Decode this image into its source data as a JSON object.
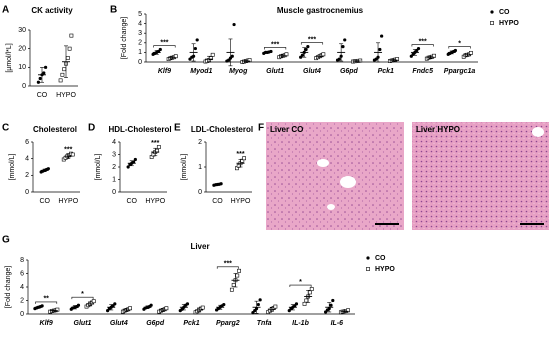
{
  "chart_data": [
    {
      "type": "dot",
      "panel": "A",
      "title": "CK activity",
      "ylabel": "[µmol/l*L]",
      "ylim": [
        0,
        30
      ],
      "yticks": [
        0,
        10,
        20,
        30
      ],
      "categories": [
        "CO",
        "HYPO"
      ],
      "markers": [
        "circle",
        "square"
      ],
      "values": [
        6,
        13
      ],
      "errors": [
        4,
        8.5
      ],
      "points": [
        [
          2,
          4,
          6,
          7,
          10
        ],
        [
          3,
          6,
          9,
          12,
          15,
          20,
          27
        ]
      ]
    },
    {
      "type": "dot",
      "panel": "B",
      "title": "Muscle gastrocnemius",
      "ylabel": "[Fold change]",
      "ylim": [
        0,
        5
      ],
      "yticks": [
        0,
        1,
        2,
        3,
        4,
        5
      ],
      "italic_categories": true,
      "categories": [
        "Klf9",
        "Myod1",
        "Myog",
        "Glut1",
        "Glut4",
        "G6pd",
        "Pck1",
        "Fndc5",
        "Ppargc1a"
      ],
      "significance": [
        "***",
        null,
        null,
        "***",
        "***",
        null,
        null,
        "***",
        "*"
      ],
      "series": [
        {
          "name": "CO",
          "marker": "circle",
          "values": [
            1,
            1,
            1,
            1,
            1,
            1,
            1,
            1,
            1
          ],
          "errors": [
            0.2,
            0.9,
            1.4,
            0.1,
            0.5,
            0.9,
            1.0,
            0.3,
            0.15
          ],
          "points": [
            [
              0.8,
              0.9,
              1.0,
              1.1,
              1.3
            ],
            [
              0.3,
              0.5,
              0.6,
              1.4,
              2.3
            ],
            [
              0.1,
              0.2,
              0.4,
              0.6,
              3.9
            ],
            [
              0.9,
              1.0,
              1.0,
              1.05,
              1.1
            ],
            [
              0.5,
              0.7,
              1.0,
              1.3,
              1.6
            ],
            [
              0.2,
              0.3,
              0.6,
              1.6,
              2.3
            ],
            [
              0.2,
              0.3,
              0.5,
              1.3,
              2.7
            ],
            [
              0.6,
              0.8,
              1.0,
              1.2,
              1.4
            ],
            [
              0.8,
              0.9,
              1.0,
              1.1,
              1.2
            ]
          ]
        },
        {
          "name": "HYPO",
          "marker": "square",
          "values": [
            0.45,
            0.3,
            0.1,
            0.65,
            0.6,
            0.1,
            0.2,
            0.5,
            0.75
          ],
          "errors": [
            0.1,
            0.3,
            0.1,
            0.1,
            0.15,
            0.05,
            0.1,
            0.1,
            0.15
          ],
          "points": [
            [
              0.3,
              0.4,
              0.45,
              0.5,
              0.6
            ],
            [
              0.05,
              0.1,
              0.2,
              0.4,
              0.75
            ],
            [
              0.0,
              0.05,
              0.1,
              0.15,
              0.2
            ],
            [
              0.5,
              0.6,
              0.65,
              0.7,
              0.8
            ],
            [
              0.4,
              0.5,
              0.6,
              0.7,
              0.8
            ],
            [
              0.05,
              0.08,
              0.1,
              0.12,
              0.15
            ],
            [
              0.1,
              0.15,
              0.2,
              0.25,
              0.3
            ],
            [
              0.35,
              0.45,
              0.5,
              0.55,
              0.65
            ],
            [
              0.55,
              0.7,
              0.75,
              0.8,
              0.95
            ]
          ]
        }
      ]
    },
    {
      "type": "dot",
      "panel": "C",
      "title": "Cholesterol",
      "ylabel": "[mmol/L]",
      "ylim": [
        0,
        6
      ],
      "yticks": [
        0,
        2,
        4,
        6
      ],
      "categories": [
        "CO",
        "HYPO"
      ],
      "markers": [
        "circle",
        "square"
      ],
      "values": [
        2.6,
        4.3
      ],
      "errors": [
        0.15,
        0.3
      ],
      "significance": "***",
      "points": [
        [
          2.4,
          2.5,
          2.6,
          2.7,
          2.8
        ],
        [
          3.9,
          4.1,
          4.3,
          4.4,
          4.6,
          4.5
        ]
      ]
    },
    {
      "type": "dot",
      "panel": "D",
      "title": "HDL-Cholesterol",
      "ylabel": "[mmol/L]",
      "ylim": [
        0,
        4
      ],
      "yticks": [
        0,
        1,
        2,
        3,
        4
      ],
      "categories": [
        "CO",
        "HYPO"
      ],
      "markers": [
        "circle",
        "square"
      ],
      "values": [
        2.3,
        3.2
      ],
      "errors": [
        0.2,
        0.3
      ],
      "significance": "***",
      "points": [
        [
          2.0,
          2.2,
          2.3,
          2.4,
          2.6
        ],
        [
          2.8,
          3.0,
          3.2,
          3.3,
          3.6
        ]
      ]
    },
    {
      "type": "dot",
      "panel": "E",
      "title": "LDL-Cholesterol",
      "ylabel": "[mmol/L]",
      "ylim": [
        0,
        2
      ],
      "yticks": [
        0,
        1,
        2
      ],
      "categories": [
        "CO",
        "HYPO"
      ],
      "markers": [
        "circle",
        "square"
      ],
      "values": [
        0.3,
        1.15
      ],
      "errors": [
        0.03,
        0.15
      ],
      "significance": "***",
      "points": [
        [
          0.27,
          0.29,
          0.3,
          0.31,
          0.33
        ],
        [
          0.95,
          1.05,
          1.15,
          1.25,
          1.35
        ]
      ]
    },
    {
      "type": "dot",
      "panel": "G",
      "title": "Liver",
      "ylabel": "[Fold change]",
      "ylim": [
        0,
        8
      ],
      "yticks": [
        0,
        2,
        4,
        6,
        8
      ],
      "italic_categories": true,
      "categories": [
        "Klf9",
        "Glut1",
        "Glut4",
        "G6pd",
        "Pck1",
        "Pparg2",
        "Tnfa",
        "IL-1b",
        "IL-6"
      ],
      "significance": [
        "**",
        "*",
        null,
        null,
        null,
        "***",
        null,
        "*",
        null
      ],
      "series": [
        {
          "name": "CO",
          "marker": "circle",
          "values": [
            1,
            1,
            1,
            1,
            1,
            1,
            1,
            1,
            1
          ],
          "errors": [
            0.15,
            0.25,
            0.4,
            0.2,
            0.4,
            0.3,
            0.9,
            0.4,
            0.7
          ],
          "points": [
            [
              0.8,
              0.9,
              1.0,
              1.1,
              1.2
            ],
            [
              0.7,
              0.9,
              1.0,
              1.1,
              1.3
            ],
            [
              0.5,
              0.8,
              1.0,
              1.2,
              1.5
            ],
            [
              0.7,
              0.9,
              1.0,
              1.1,
              1.3
            ],
            [
              0.5,
              0.7,
              1.0,
              1.3,
              1.5
            ],
            [
              0.6,
              0.8,
              1.0,
              1.2,
              1.4
            ],
            [
              0.2,
              0.5,
              0.8,
              1.4,
              2.1
            ],
            [
              0.5,
              0.8,
              1.0,
              1.2,
              1.5
            ],
            [
              0.3,
              0.6,
              0.8,
              1.3,
              2.0
            ]
          ]
        },
        {
          "name": "HYPO",
          "marker": "square",
          "values": [
            0.5,
            1.5,
            0.6,
            0.6,
            0.6,
            5.0,
            0.7,
            2.6,
            0.4
          ],
          "errors": [
            0.1,
            0.3,
            0.2,
            0.2,
            0.3,
            1.0,
            0.3,
            0.9,
            0.1
          ],
          "points": [
            [
              0.35,
              0.45,
              0.5,
              0.55,
              0.65
            ],
            [
              1.1,
              1.3,
              1.5,
              1.7,
              1.9
            ],
            [
              0.35,
              0.5,
              0.6,
              0.7,
              0.85
            ],
            [
              0.35,
              0.5,
              0.6,
              0.7,
              0.85
            ],
            [
              0.25,
              0.4,
              0.6,
              0.8,
              0.95
            ],
            [
              3.6,
              4.3,
              5.0,
              5.7,
              6.4
            ],
            [
              0.3,
              0.5,
              0.7,
              0.9,
              1.1
            ],
            [
              1.5,
              2.0,
              2.6,
              3.2,
              3.7
            ],
            [
              0.25,
              0.35,
              0.4,
              0.45,
              0.55
            ]
          ]
        }
      ]
    }
  ],
  "figure_f": {
    "panel": "F",
    "labels": [
      "Liver CO",
      "Liver HYPO"
    ]
  }
}
